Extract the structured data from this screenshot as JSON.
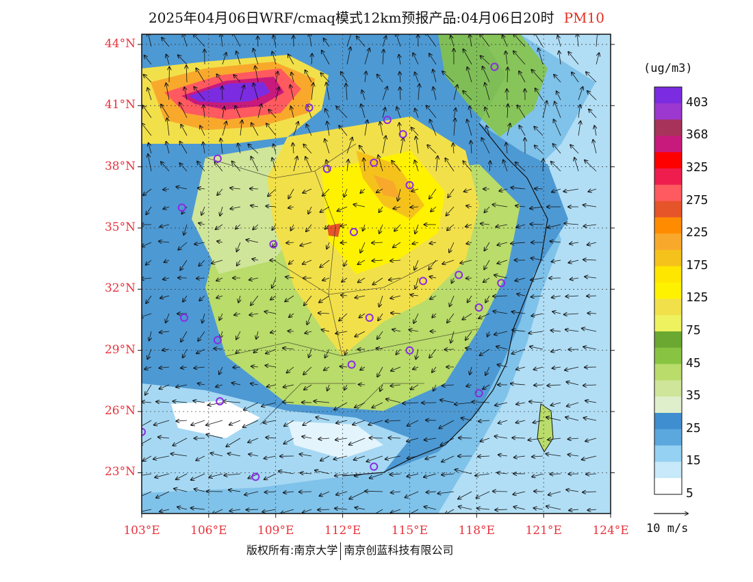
{
  "title": {
    "main": "2025年04月06日WRF/cmaq模式12km预报产品:04月06日20时",
    "pollutant": "PM10",
    "pollutant_color": "#e0301e"
  },
  "axes": {
    "lat_labels": [
      "44°N",
      "41°N",
      "38°N",
      "35°N",
      "32°N",
      "29°N",
      "26°N",
      "23°N"
    ],
    "lat_values": [
      44,
      41,
      38,
      35,
      32,
      29,
      26,
      23
    ],
    "lon_labels": [
      "103°E",
      "106°E",
      "109°E",
      "112°E",
      "115°E",
      "118°E",
      "121°E",
      "124°E"
    ],
    "lon_values": [
      103,
      106,
      109,
      112,
      115,
      118,
      121,
      124
    ],
    "lat_range": [
      21,
      44.5
    ],
    "lon_range": [
      103,
      124
    ],
    "label_color": "#e8323c"
  },
  "legend": {
    "unit": "(ug/m3)",
    "labels": [
      "403",
      "368",
      "325",
      "275",
      "225",
      "175",
      "125",
      "75",
      "45",
      "35",
      "25",
      "15",
      "5"
    ],
    "colors": [
      "#7b2ce0",
      "#9c37cf",
      "#a8335a",
      "#c81a7d",
      "#ff0000",
      "#ef1d4e",
      "#ff5a5f",
      "#e6542a",
      "#ff8c00",
      "#f8a92c",
      "#f5c21b",
      "#ffe600",
      "#fff200",
      "#f2e04a",
      "#eef25e",
      "#6aa832",
      "#88c441",
      "#b9dc6a",
      "#cfe59a",
      "#dfeecb",
      "#3f8ecf",
      "#5ba8de",
      "#95d1f2",
      "#c7e9f9",
      "#ffffff"
    ]
  },
  "vector_legend": {
    "label": "10 m/s"
  },
  "stations": [
    {
      "lon": 118.8,
      "lat": 42.9
    },
    {
      "lon": 110.5,
      "lat": 40.9
    },
    {
      "lon": 114.0,
      "lat": 40.3
    },
    {
      "lon": 114.7,
      "lat": 39.6
    },
    {
      "lon": 106.4,
      "lat": 38.4
    },
    {
      "lon": 111.3,
      "lat": 37.9
    },
    {
      "lon": 113.4,
      "lat": 38.2
    },
    {
      "lon": 115.0,
      "lat": 37.1
    },
    {
      "lon": 104.8,
      "lat": 36.0
    },
    {
      "lon": 112.5,
      "lat": 34.8
    },
    {
      "lon": 108.9,
      "lat": 34.2
    },
    {
      "lon": 115.6,
      "lat": 32.4
    },
    {
      "lon": 117.2,
      "lat": 32.7
    },
    {
      "lon": 119.1,
      "lat": 32.3
    },
    {
      "lon": 118.1,
      "lat": 31.1
    },
    {
      "lon": 104.9,
      "lat": 30.6
    },
    {
      "lon": 113.2,
      "lat": 30.6
    },
    {
      "lon": 106.4,
      "lat": 29.5
    },
    {
      "lon": 115.0,
      "lat": 29.0
    },
    {
      "lon": 112.4,
      "lat": 28.3
    },
    {
      "lon": 118.1,
      "lat": 26.9
    },
    {
      "lon": 106.5,
      "lat": 26.5
    },
    {
      "lon": 103.0,
      "lat": 25.0
    },
    {
      "lon": 113.4,
      "lat": 23.3
    },
    {
      "lon": 108.1,
      "lat": 22.8
    }
  ],
  "footer": {
    "left": "版权所有:南京大学",
    "right": "南京创蓝科技有限公司"
  }
}
